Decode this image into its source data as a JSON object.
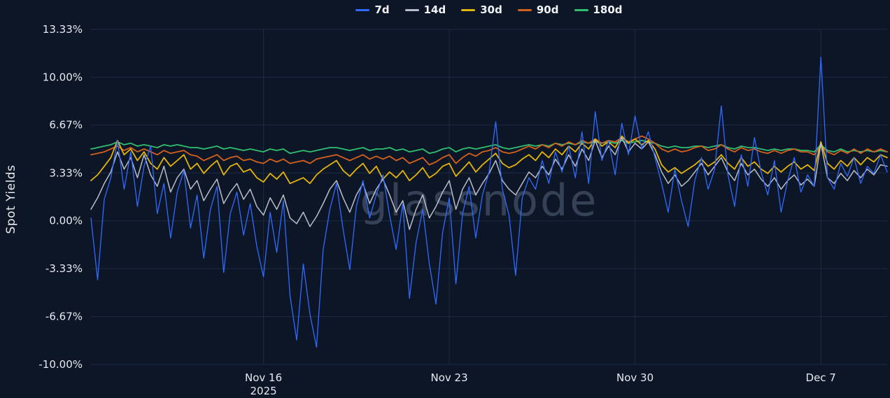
{
  "theme": {
    "background": "#0d1626",
    "grid": "#1c2b45",
    "text": "#e7eaf0",
    "watermark_color": "#3c4960"
  },
  "watermark": "glassnode",
  "chart_data": {
    "type": "line",
    "title": "",
    "ylabel": "Spot Yields",
    "legend_position": "top",
    "grid": true,
    "x_domain": [
      0,
      30
    ],
    "y_domain": [
      -10,
      13.33
    ],
    "y_ticks": [
      {
        "value": 13.33,
        "label": "13.33%"
      },
      {
        "value": 10.0,
        "label": "10.00%"
      },
      {
        "value": 6.67,
        "label": "6.67%"
      },
      {
        "value": 3.33,
        "label": "3.33%"
      },
      {
        "value": 0.0,
        "label": "0.00%"
      },
      {
        "value": -3.33,
        "label": "-3.33%"
      },
      {
        "value": -6.67,
        "label": "-6.67%"
      },
      {
        "value": -10.0,
        "label": "-10.00%"
      }
    ],
    "x_ticks": [
      {
        "day": 6.5,
        "label": "Nov 16",
        "sublabel": "2025"
      },
      {
        "day": 13.5,
        "label": "Nov 23"
      },
      {
        "day": 20.5,
        "label": "Nov 30"
      },
      {
        "day": 27.5,
        "label": "Dec 7"
      }
    ],
    "x": [
      0,
      0.25,
      0.5,
      0.75,
      1,
      1.25,
      1.5,
      1.75,
      2,
      2.25,
      2.5,
      2.75,
      3,
      3.25,
      3.5,
      3.75,
      4,
      4.25,
      4.5,
      4.75,
      5,
      5.25,
      5.5,
      5.75,
      6,
      6.25,
      6.5,
      6.75,
      7,
      7.25,
      7.5,
      7.75,
      8,
      8.25,
      8.5,
      8.75,
      9,
      9.25,
      9.5,
      9.75,
      10,
      10.25,
      10.5,
      10.75,
      11,
      11.25,
      11.5,
      11.75,
      12,
      12.25,
      12.5,
      12.75,
      13,
      13.25,
      13.5,
      13.75,
      14,
      14.25,
      14.5,
      14.75,
      15,
      15.25,
      15.5,
      15.75,
      16,
      16.25,
      16.5,
      16.75,
      17,
      17.25,
      17.5,
      17.75,
      18,
      18.25,
      18.5,
      18.75,
      19,
      19.25,
      19.5,
      19.75,
      20,
      20.25,
      20.5,
      20.75,
      21,
      21.25,
      21.5,
      21.75,
      22,
      22.25,
      22.5,
      22.75,
      23,
      23.25,
      23.5,
      23.75,
      24,
      24.25,
      24.5,
      24.75,
      25,
      25.25,
      25.5,
      25.75,
      26,
      26.25,
      26.5,
      26.75,
      27,
      27.25,
      27.5,
      27.75,
      28,
      28.25,
      28.5,
      28.75,
      29,
      29.25,
      29.5,
      29.75,
      30
    ],
    "series": [
      {
        "name": "7d",
        "color": "#2f6bff",
        "width": 1.3,
        "values": [
          0.2,
          -4.1,
          1.5,
          3.0,
          5.6,
          2.2,
          4.8,
          1.0,
          3.8,
          5.2,
          0.5,
          2.6,
          -1.2,
          2.0,
          3.5,
          -0.5,
          1.8,
          -2.6,
          0.8,
          2.4,
          -3.6,
          0.5,
          2.0,
          -1.0,
          1.2,
          -1.8,
          -3.9,
          0.6,
          -2.2,
          1.4,
          -5.2,
          -8.3,
          -3.0,
          -6.5,
          -8.8,
          -2.0,
          0.8,
          2.6,
          -0.6,
          -3.4,
          1.0,
          2.8,
          0.2,
          1.8,
          3.2,
          0.4,
          -2.0,
          1.2,
          -5.4,
          -1.5,
          0.8,
          -3.0,
          -5.8,
          -0.8,
          1.6,
          -4.4,
          0.5,
          2.4,
          -1.2,
          1.8,
          3.4,
          6.9,
          2.2,
          0.4,
          -3.8,
          1.6,
          3.0,
          2.2,
          4.2,
          2.6,
          4.8,
          3.4,
          5.2,
          3.0,
          6.2,
          2.6,
          7.6,
          4.2,
          5.6,
          3.2,
          6.8,
          4.6,
          7.3,
          5.0,
          6.2,
          4.4,
          2.6,
          0.6,
          3.6,
          1.4,
          -0.4,
          2.8,
          4.4,
          2.2,
          3.6,
          8.0,
          3.2,
          1.0,
          4.6,
          2.4,
          5.8,
          3.4,
          1.8,
          4.2,
          0.6,
          2.8,
          4.4,
          2.0,
          3.2,
          2.4,
          11.4,
          3.0,
          2.2,
          4.0,
          3.1,
          4.4,
          2.6,
          3.8,
          3.3,
          4.6,
          3.4
        ]
      },
      {
        "name": "14d",
        "color": "#b8bdc9",
        "width": 1.5,
        "values": [
          0.8,
          1.6,
          2.6,
          3.4,
          4.8,
          3.6,
          4.4,
          3.0,
          4.6,
          3.2,
          2.4,
          3.8,
          2.0,
          3.0,
          3.6,
          2.2,
          2.8,
          1.4,
          2.2,
          2.9,
          1.2,
          2.0,
          2.6,
          1.5,
          2.2,
          1.0,
          0.4,
          1.6,
          0.8,
          1.8,
          0.2,
          -0.2,
          0.6,
          -0.4,
          0.3,
          1.2,
          2.2,
          2.8,
          1.6,
          0.6,
          1.8,
          2.6,
          1.2,
          2.2,
          2.9,
          1.8,
          0.6,
          1.4,
          -0.6,
          0.8,
          1.8,
          0.2,
          1.0,
          2.0,
          2.8,
          0.8,
          2.2,
          3.0,
          1.8,
          2.6,
          3.3,
          4.2,
          2.8,
          2.2,
          1.8,
          2.6,
          3.4,
          3.0,
          3.8,
          3.2,
          4.3,
          3.6,
          4.6,
          3.8,
          5.0,
          4.2,
          5.6,
          4.4,
          5.2,
          4.6,
          5.8,
          4.8,
          5.4,
          5.0,
          5.5,
          4.6,
          3.4,
          2.6,
          3.2,
          2.4,
          2.8,
          3.4,
          4.0,
          3.2,
          3.8,
          4.4,
          3.4,
          2.8,
          4.0,
          3.2,
          3.6,
          2.9,
          2.4,
          3.0,
          2.2,
          2.8,
          3.2,
          2.5,
          2.9,
          2.4,
          5.4,
          3.0,
          2.6,
          3.3,
          2.8,
          3.5,
          3.0,
          3.6,
          3.2,
          3.9,
          3.8
        ]
      },
      {
        "name": "30d",
        "color": "#e3b409",
        "width": 1.8,
        "values": [
          2.8,
          3.2,
          3.8,
          4.4,
          5.6,
          4.6,
          5.0,
          4.2,
          4.8,
          4.0,
          3.6,
          4.4,
          3.8,
          4.2,
          4.6,
          3.6,
          4.0,
          3.3,
          3.8,
          4.2,
          3.2,
          3.8,
          4.0,
          3.4,
          3.6,
          3.0,
          2.7,
          3.3,
          2.9,
          3.4,
          2.6,
          2.8,
          3.0,
          2.6,
          3.2,
          3.6,
          3.9,
          4.2,
          3.5,
          3.1,
          3.6,
          4.0,
          3.3,
          3.8,
          2.9,
          3.4,
          3.0,
          3.5,
          2.8,
          3.2,
          3.7,
          3.0,
          3.3,
          3.8,
          4.0,
          3.1,
          3.6,
          4.1,
          3.4,
          3.9,
          4.3,
          4.7,
          4.0,
          3.7,
          3.9,
          4.3,
          4.6,
          4.2,
          4.8,
          4.4,
          5.0,
          4.6,
          5.2,
          4.8,
          5.4,
          5.0,
          5.7,
          5.2,
          5.5,
          5.1,
          5.9,
          5.4,
          5.7,
          5.3,
          5.6,
          5.0,
          3.9,
          3.4,
          3.7,
          3.3,
          3.6,
          3.9,
          4.3,
          3.8,
          4.1,
          4.6,
          4.0,
          3.6,
          4.4,
          3.8,
          4.1,
          3.6,
          3.3,
          3.8,
          3.4,
          3.8,
          4.1,
          3.6,
          3.9,
          3.5,
          5.5,
          4.0,
          3.6,
          4.2,
          3.8,
          4.4,
          3.9,
          4.4,
          4.1,
          4.6,
          4.4
        ]
      },
      {
        "name": "90d",
        "color": "#d4611c",
        "width": 1.8,
        "values": [
          4.6,
          4.7,
          4.8,
          5.0,
          5.2,
          4.9,
          5.1,
          4.8,
          5.0,
          4.8,
          4.6,
          4.9,
          4.7,
          4.8,
          4.9,
          4.6,
          4.5,
          4.2,
          4.4,
          4.6,
          4.2,
          4.4,
          4.5,
          4.2,
          4.3,
          4.1,
          4.0,
          4.3,
          4.1,
          4.3,
          4.0,
          4.1,
          4.2,
          4.0,
          4.3,
          4.4,
          4.5,
          4.6,
          4.4,
          4.2,
          4.4,
          4.6,
          4.3,
          4.5,
          4.3,
          4.5,
          4.2,
          4.4,
          4.0,
          4.2,
          4.4,
          3.9,
          4.1,
          4.4,
          4.6,
          4.0,
          4.4,
          4.7,
          4.5,
          4.8,
          4.9,
          5.1,
          4.8,
          4.7,
          4.8,
          5.0,
          5.2,
          5.0,
          5.3,
          5.1,
          5.4,
          5.2,
          5.5,
          5.3,
          5.6,
          5.4,
          5.7,
          5.4,
          5.6,
          5.5,
          5.8,
          5.5,
          5.7,
          5.9,
          5.7,
          5.4,
          5.0,
          4.8,
          5.0,
          4.8,
          4.9,
          5.1,
          5.2,
          4.9,
          5.0,
          5.3,
          5.0,
          4.8,
          5.1,
          4.9,
          5.0,
          4.8,
          4.7,
          4.9,
          4.7,
          4.9,
          5.0,
          4.8,
          4.8,
          4.6,
          5.2,
          4.8,
          4.6,
          4.9,
          4.7,
          5.0,
          4.7,
          5.0,
          4.8,
          5.0,
          4.8
        ]
      },
      {
        "name": "180d",
        "color": "#2fbf71",
        "width": 1.8,
        "values": [
          5.0,
          5.1,
          5.2,
          5.3,
          5.5,
          5.3,
          5.4,
          5.2,
          5.3,
          5.2,
          5.1,
          5.3,
          5.2,
          5.3,
          5.2,
          5.1,
          5.1,
          5.0,
          5.1,
          5.2,
          5.0,
          5.1,
          5.0,
          4.9,
          5.0,
          4.9,
          4.8,
          5.0,
          4.9,
          5.0,
          4.7,
          4.8,
          4.9,
          4.8,
          4.9,
          5.0,
          5.1,
          5.1,
          5.0,
          4.9,
          5.0,
          5.1,
          4.9,
          5.0,
          5.0,
          5.1,
          4.9,
          5.0,
          4.8,
          4.9,
          5.0,
          4.7,
          4.8,
          5.0,
          5.1,
          4.8,
          5.0,
          5.1,
          5.0,
          5.1,
          5.2,
          5.3,
          5.1,
          5.0,
          5.1,
          5.2,
          5.3,
          5.2,
          5.3,
          5.2,
          5.4,
          5.3,
          5.4,
          5.3,
          5.5,
          5.4,
          5.5,
          5.4,
          5.5,
          5.4,
          5.6,
          5.4,
          5.5,
          5.6,
          5.5,
          5.4,
          5.2,
          5.1,
          5.2,
          5.1,
          5.1,
          5.2,
          5.2,
          5.1,
          5.2,
          5.3,
          5.1,
          5.0,
          5.2,
          5.1,
          5.1,
          5.0,
          4.9,
          5.0,
          4.9,
          5.0,
          5.0,
          4.9,
          4.9,
          4.8,
          5.3,
          4.9,
          4.8,
          5.0,
          4.8,
          4.9,
          4.8,
          4.9,
          4.8,
          4.9,
          4.8
        ]
      }
    ]
  }
}
